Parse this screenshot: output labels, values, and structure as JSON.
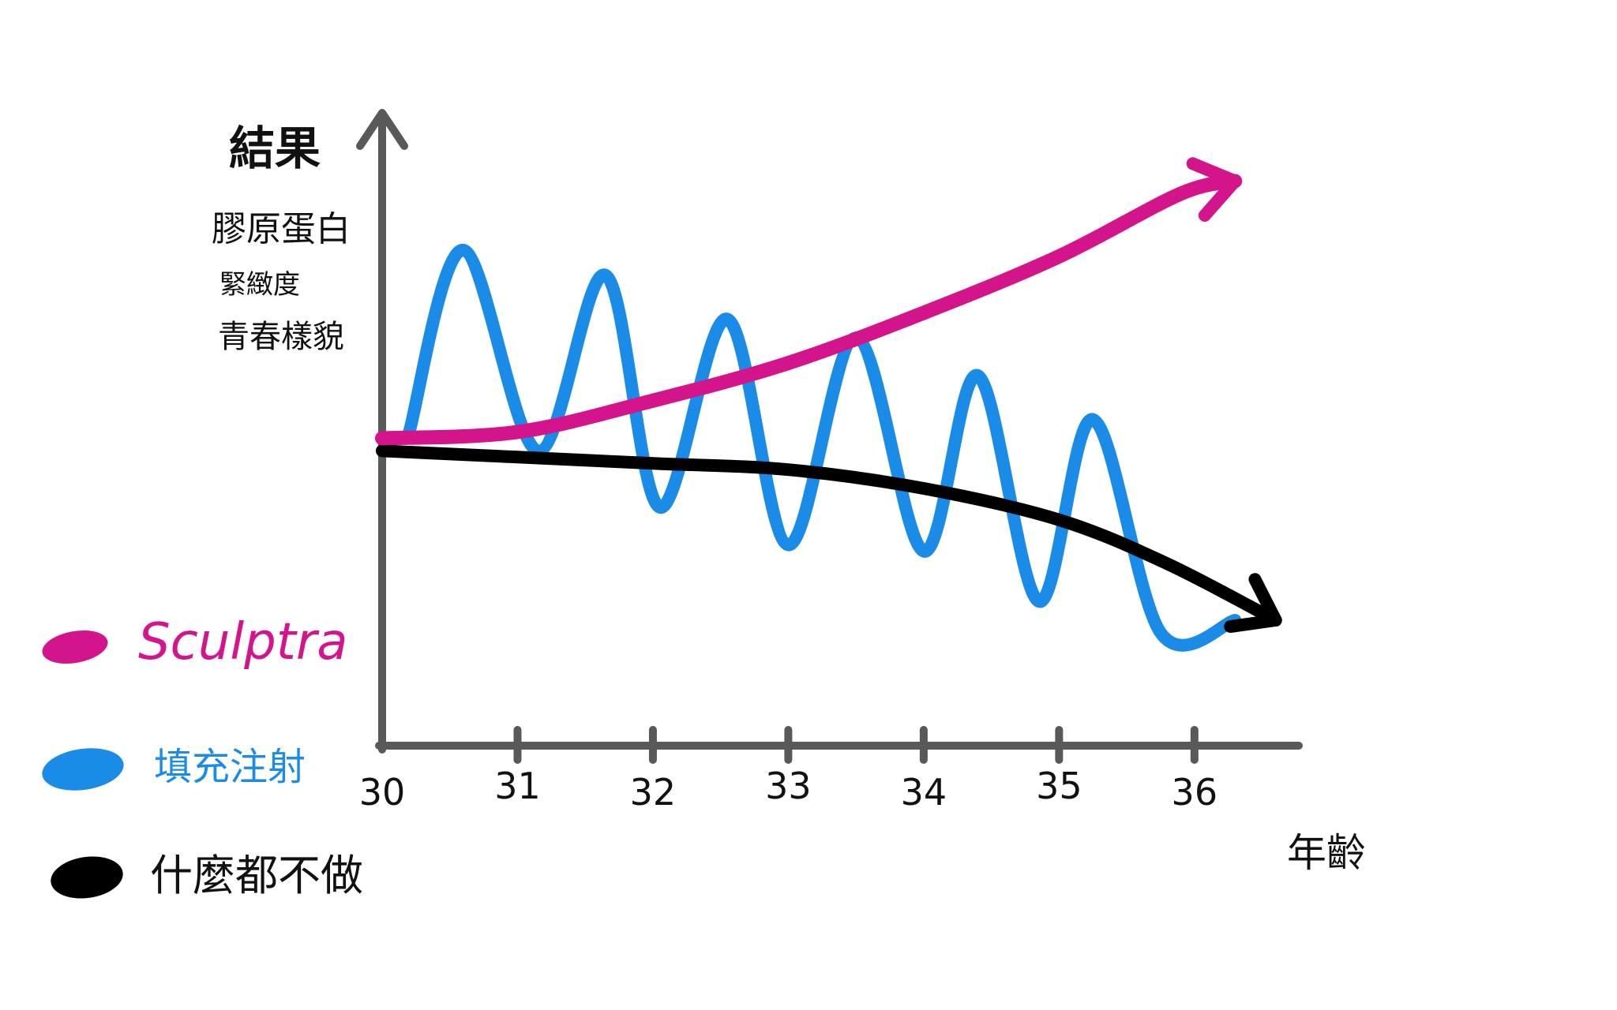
{
  "chart_data": {
    "type": "line",
    "title": "",
    "ylabel": "結果",
    "ylabel_notes": [
      "膠原蛋白",
      "緊緻度",
      "青春樣貌"
    ],
    "xlabel": "年齡",
    "x_ticks": [
      "30",
      "31",
      "32",
      "33",
      "34",
      "35",
      "36"
    ],
    "x": [
      30,
      31,
      32,
      33,
      34,
      35,
      36
    ],
    "xlim": [
      30,
      36.8
    ],
    "ylim": [
      0,
      10
    ],
    "grid": false,
    "legend_position": "left",
    "series": [
      {
        "name": "Sculptra",
        "color": "#d4148a",
        "x": [
          30,
          31,
          32,
          33,
          34,
          35,
          35.9,
          36.3
        ],
        "values": [
          4.9,
          5.0,
          5.5,
          6.1,
          6.9,
          7.8,
          8.8,
          9.0
        ]
      },
      {
        "name": "填充注射",
        "color": "#1a8ce8",
        "oscillating": true,
        "x": [
          30.2,
          30.6,
          31.15,
          31.65,
          32.05,
          32.55,
          33.0,
          33.5,
          34.0,
          34.4,
          34.85,
          35.25,
          35.75,
          36.3
        ],
        "values": [
          5.0,
          7.9,
          4.7,
          7.5,
          3.8,
          6.8,
          3.2,
          6.5,
          3.1,
          5.9,
          2.3,
          5.2,
          1.8,
          2.0
        ]
      },
      {
        "name": "什麼都不做",
        "color": "#000000",
        "x": [
          30,
          31,
          32,
          33,
          34,
          35,
          35.8,
          36.6
        ],
        "values": [
          4.7,
          4.6,
          4.5,
          4.4,
          4.1,
          3.6,
          2.9,
          2.0
        ]
      }
    ]
  }
}
